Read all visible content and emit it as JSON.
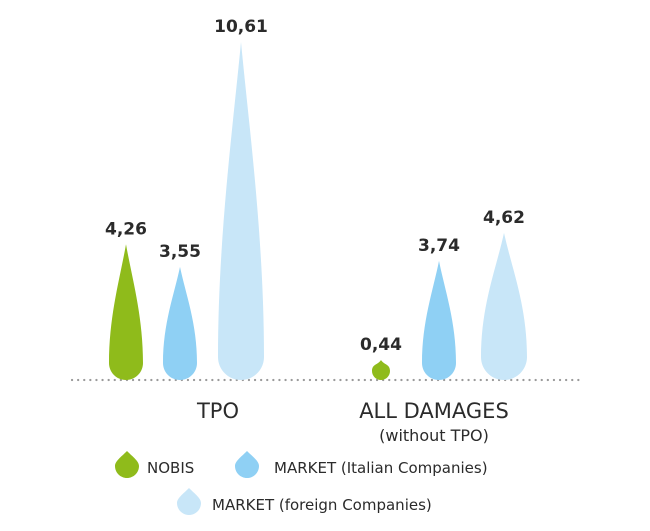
{
  "chart_data": {
    "type": "bar",
    "categories": [
      "TPO",
      "ALL DAMAGES"
    ],
    "category_subtitles": [
      "",
      "(without TPO)"
    ],
    "series": [
      {
        "name": "NOBIS",
        "values": [
          4.26,
          0.44
        ],
        "labels": [
          "4,26",
          "0,44"
        ],
        "color": "#8fbb1b"
      },
      {
        "name": "MARKET (Italian Companies)",
        "values": [
          3.55,
          3.74
        ],
        "labels": [
          "3,55",
          "3,74"
        ],
        "color": "#8fd0f4"
      },
      {
        "name": "MARKET (foreign Companies)",
        "values": [
          10.61,
          4.62
        ],
        "labels": [
          "10,61",
          "4,62"
        ],
        "color": "#c8e6f8"
      }
    ],
    "ylim": [
      0,
      10.61
    ],
    "grid": false,
    "baseline": "dotted",
    "legend_position": "bottom"
  }
}
